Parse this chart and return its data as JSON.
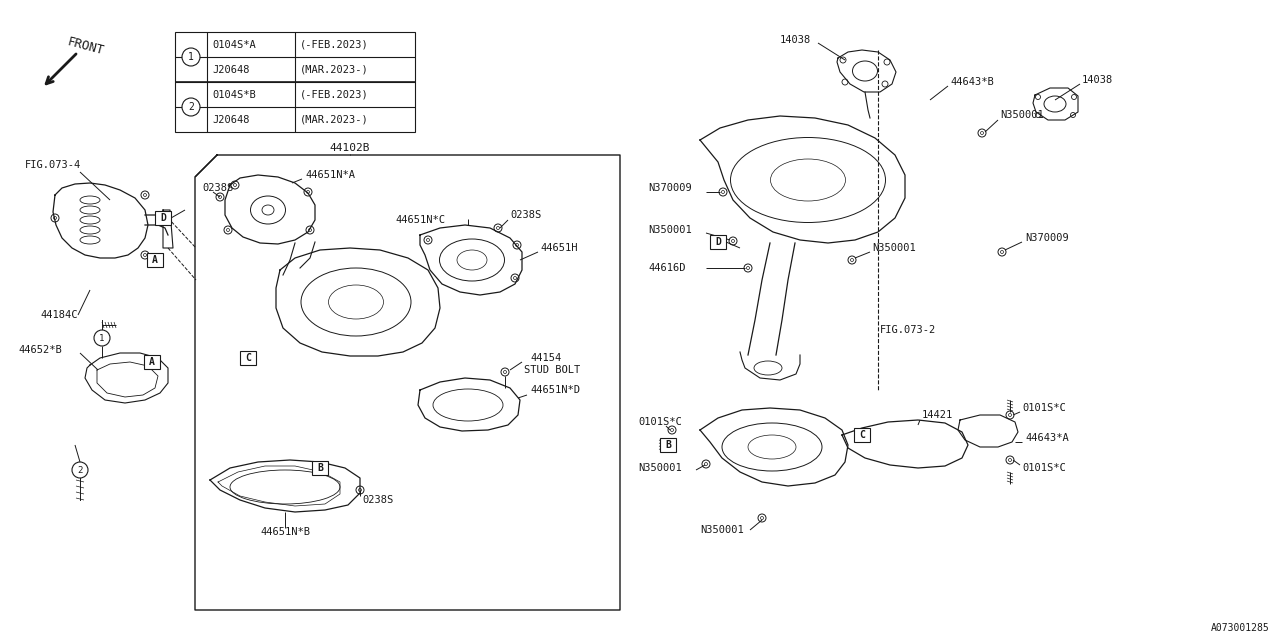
{
  "bg_color": "#ffffff",
  "line_color": "#1a1a1a",
  "text_color": "#1a1a1a",
  "fig_width": 12.8,
  "fig_height": 6.4,
  "watermark": "A073001285",
  "front_text": "FRONT",
  "legend_rows": [
    [
      "0104S*A",
      "(-FEB.2023)"
    ],
    [
      "J20648",
      "(MAR.2023-)"
    ],
    [
      "0104S*B",
      "(-FEB.2023)"
    ],
    [
      "J20648",
      "(MAR.2023-)"
    ]
  ],
  "center_box_label": "44102B",
  "labels": {
    "FIG073_4": "FIG.073-4",
    "44184C": "44184C",
    "44652B": "44652*B",
    "44651NA": "44651N*A",
    "0238S_1": "0238S",
    "0238S_2": "0238S",
    "0238S_3": "0238S",
    "44651NC": "44651N*C",
    "44651H": "44651H",
    "44154": "44154",
    "STUDBOLT": "STUD BOLT",
    "44651ND": "44651N*D",
    "44651NB": "44651N*B",
    "14038_1": "14038",
    "14038_2": "14038",
    "44643B": "44643*B",
    "N370009_1": "N370009",
    "N370009_2": "N370009",
    "N350001_1": "N350001",
    "N350001_2": "N350001",
    "N350001_3": "N350001",
    "N350001_4": "N350001",
    "44616D": "44616D",
    "FIG073_2": "FIG.073-2",
    "0101SC_1": "0101S*C",
    "0101SC_2": "0101S*C",
    "0101SC_3": "0101S*C",
    "14421": "14421",
    "44643A": "44643*A"
  }
}
